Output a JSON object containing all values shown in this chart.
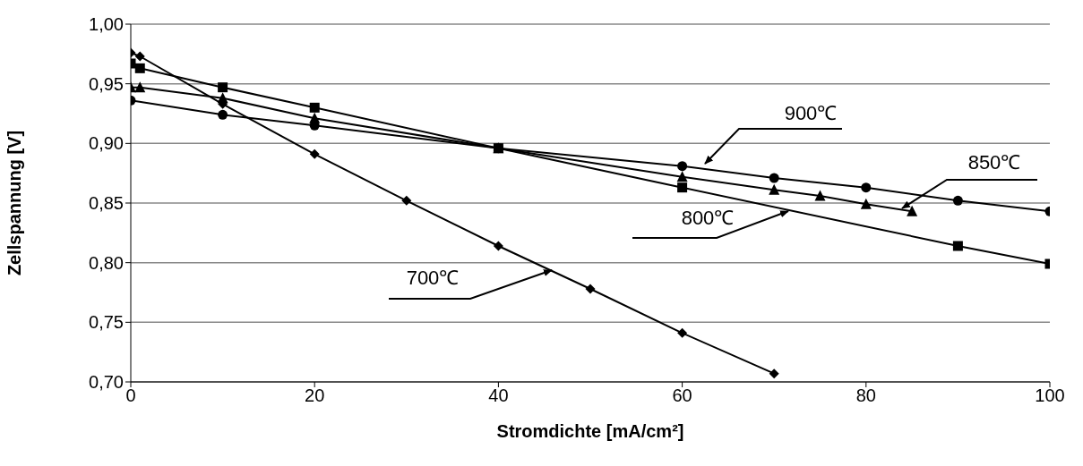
{
  "chart_data": {
    "type": "line",
    "xlabel": "Stromdichte [mA/cm²]",
    "ylabel": "Zellspannung [V]",
    "xlim": [
      0,
      100
    ],
    "xticks": [
      0,
      20,
      40,
      60,
      80,
      100
    ],
    "ylim": [
      0.7,
      1.0
    ],
    "yticks": [
      {
        "value": 0.7,
        "label": "0,70"
      },
      {
        "value": 0.75,
        "label": "0,75"
      },
      {
        "value": 0.8,
        "label": "0,80"
      },
      {
        "value": 0.85,
        "label": "0,85"
      },
      {
        "value": 0.9,
        "label": "0,90"
      },
      {
        "value": 0.95,
        "label": "0,95"
      },
      {
        "value": 1.0,
        "label": "1,00"
      }
    ],
    "grid": "y",
    "line_style": "solid",
    "series": [
      {
        "name": "700℃",
        "color": "#000000",
        "marker": "diamond",
        "x": [
          0,
          1,
          10,
          20,
          30,
          40,
          50,
          60,
          70
        ],
        "values": [
          0.976,
          0.973,
          0.933,
          0.891,
          0.852,
          0.814,
          0.778,
          0.741,
          0.707
        ]
      },
      {
        "name": "800℃",
        "color": "#000000",
        "marker": "square",
        "x": [
          0,
          1,
          10,
          20,
          40,
          60,
          90,
          100
        ],
        "values": [
          0.967,
          0.963,
          0.947,
          0.93,
          0.896,
          0.863,
          0.814,
          0.799
        ]
      },
      {
        "name": "850℃",
        "color": "#000000",
        "marker": "triangle",
        "x": [
          0,
          1,
          10,
          20,
          40,
          60,
          70,
          75,
          80,
          85
        ],
        "values": [
          0.947,
          0.947,
          0.938,
          0.921,
          0.896,
          0.872,
          0.861,
          0.856,
          0.849,
          0.843
        ]
      },
      {
        "name": "900℃",
        "color": "#000000",
        "marker": "circle",
        "x": [
          0,
          10,
          20,
          40,
          60,
          70,
          80,
          90,
          100
        ],
        "values": [
          0.936,
          0.924,
          0.915,
          0.896,
          0.881,
          0.871,
          0.863,
          0.852,
          0.843
        ]
      }
    ]
  }
}
